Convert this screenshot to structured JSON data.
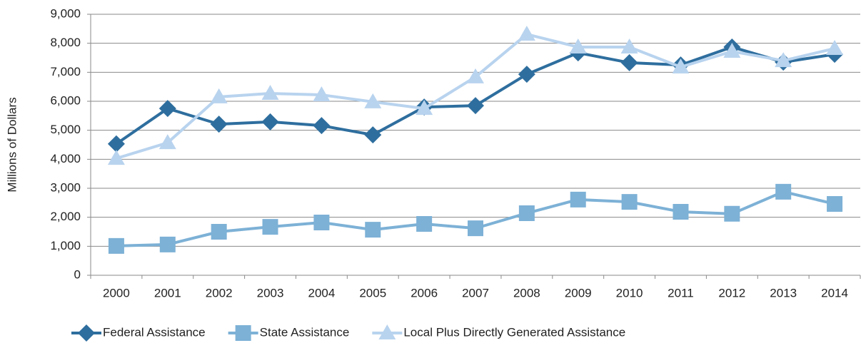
{
  "chart_data": {
    "type": "line",
    "y_label": "Millions of Dollars",
    "categories": [
      "2000",
      "2001",
      "2002",
      "2003",
      "2004",
      "2005",
      "2006",
      "2007",
      "2008",
      "2009",
      "2010",
      "2011",
      "2012",
      "2013",
      "2014"
    ],
    "series": [
      {
        "name": "Federal Assistance",
        "color": "#2e6e9e",
        "marker": "diamond",
        "values": [
          4530,
          5750,
          5210,
          5290,
          5160,
          4840,
          5800,
          5850,
          6930,
          7670,
          7330,
          7250,
          7870,
          7350,
          7620
        ]
      },
      {
        "name": "State Assistance",
        "color": "#7db1d6",
        "marker": "square",
        "values": [
          1010,
          1060,
          1500,
          1670,
          1820,
          1570,
          1770,
          1620,
          2140,
          2610,
          2530,
          2190,
          2120,
          2880,
          2460
        ]
      },
      {
        "name": "Local Plus Directly Generated Assistance",
        "color": "#b8d3ee",
        "marker": "triangle",
        "values": [
          4030,
          4570,
          6150,
          6270,
          6220,
          5980,
          5750,
          6840,
          8310,
          7870,
          7870,
          7180,
          7720,
          7400,
          7820
        ]
      }
    ],
    "ylim": [
      0,
      9000
    ],
    "yticks": [
      0,
      {
        "value": 1000,
        "label": "1,000"
      },
      {
        "value": 2000,
        "label": "2,000"
      },
      {
        "value": 3000,
        "label": "3,000"
      },
      {
        "value": 4000,
        "label": "4,000"
      },
      {
        "value": 5000,
        "label": "5,000"
      },
      {
        "value": 6000,
        "label": "6,000"
      },
      {
        "value": 7000,
        "label": "7,000"
      },
      {
        "value": 8000,
        "label": "8,000"
      },
      {
        "value": 9000,
        "label": "9,000"
      }
    ],
    "grid": true,
    "legend": "bottom"
  }
}
